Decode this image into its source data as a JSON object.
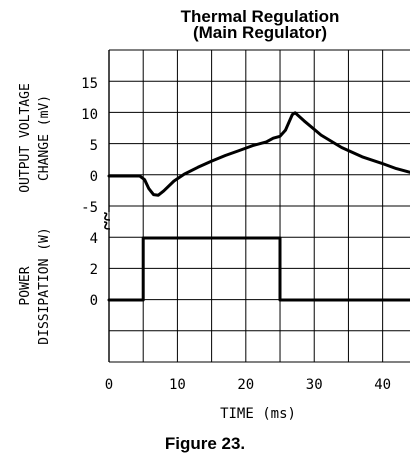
{
  "figure": {
    "title_line1": "Thermal Regulation",
    "title_line2": "(Main Regulator)",
    "caption": "Figure 23."
  },
  "chart_data": {
    "type": "line",
    "x": {
      "label": "TIME (ms)",
      "range": [
        0,
        44
      ],
      "ticks": [
        0,
        10,
        20,
        30,
        40
      ],
      "tick_labels": [
        "0",
        "10",
        "20",
        "30",
        "40"
      ]
    },
    "panels": [
      {
        "id": "output-voltage",
        "ylabel_line1": "OUTPUT VOLTAGE",
        "ylabel_line2": "CHANGE (mV)",
        "yrange": [
          -6,
          20
        ],
        "ticks": [
          15,
          10,
          5,
          0,
          -5
        ],
        "tick_labels": [
          "15",
          "10",
          "5",
          "0",
          "-5"
        ],
        "series": [
          {
            "points": [
              [
                0,
                0
              ],
              [
                4.5,
                0
              ],
              [
                5.2,
                -0.6
              ],
              [
                5.8,
                -2.0
              ],
              [
                6.5,
                -3.0
              ],
              [
                7.2,
                -3.1
              ],
              [
                8.0,
                -2.4
              ],
              [
                9.5,
                -0.8
              ],
              [
                11,
                0.3
              ],
              [
                13,
                1.4
              ],
              [
                15,
                2.4
              ],
              [
                17,
                3.3
              ],
              [
                19,
                4.1
              ],
              [
                21,
                4.9
              ],
              [
                23,
                5.5
              ],
              [
                24,
                6.1
              ],
              [
                25,
                6.4
              ],
              [
                25.8,
                7.4
              ],
              [
                26.8,
                9.9
              ],
              [
                27.2,
                10.2
              ],
              [
                28.5,
                8.9
              ],
              [
                31,
                6.6
              ],
              [
                34,
                4.6
              ],
              [
                37,
                3.1
              ],
              [
                40,
                2.0
              ],
              [
                42,
                1.2
              ],
              [
                44,
                0.6
              ]
            ]
          }
        ]
      },
      {
        "id": "power-dissipation",
        "ylabel_line1": "POWER",
        "ylabel_line2": "DISSIPATION (W)",
        "yrange": [
          -6,
          4.3
        ],
        "ticks": [
          4,
          2,
          0
        ],
        "tick_labels": [
          "4",
          "2",
          "0"
        ],
        "series": [
          {
            "points": [
              [
                0,
                0
              ],
              [
                5,
                0
              ],
              [
                5,
                4
              ],
              [
                25,
                4
              ],
              [
                25,
                0
              ],
              [
                44,
                0
              ]
            ]
          }
        ]
      }
    ],
    "grid": true
  }
}
